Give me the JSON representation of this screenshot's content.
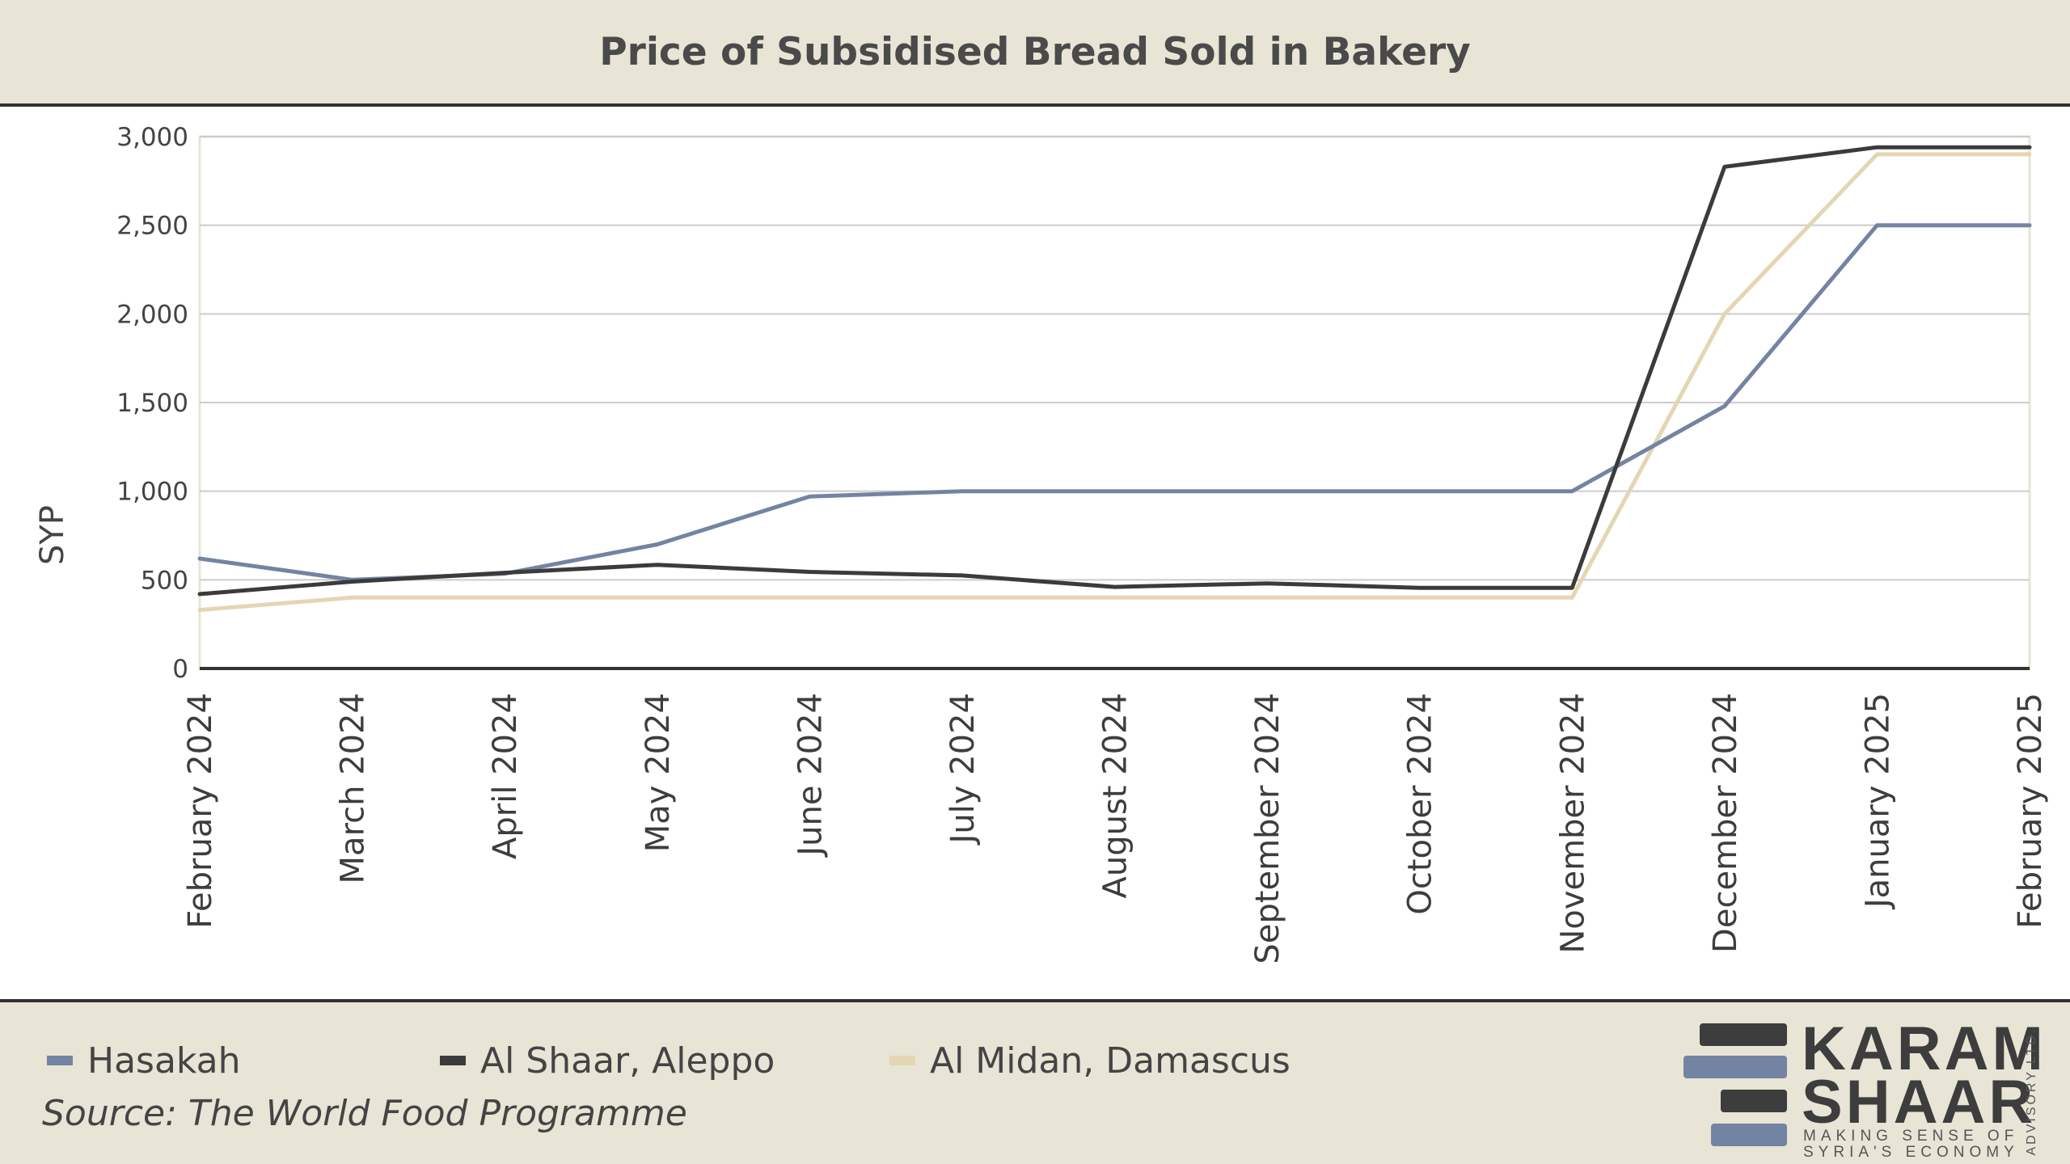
{
  "colors": {
    "hasakah": "#7384a3",
    "aleppo": "#3b3b3b",
    "damascus": "#e3d6b2",
    "band": "#e8e4d6",
    "grid": "#cccccc"
  },
  "chart_data": {
    "type": "line",
    "title": "Price of Subsidised Bread Sold in Bakery",
    "ylabel": "SYP",
    "xlabel": "",
    "ylim": [
      0,
      3000
    ],
    "yticks": [
      "0",
      "500",
      "1,000",
      "1,500",
      "2,000",
      "2,500",
      "3,000"
    ],
    "ytick_values": [
      0,
      500,
      1000,
      1500,
      2000,
      2500,
      3000
    ],
    "grid": true,
    "legend_position": "bottom",
    "categories": [
      "February 2024",
      "March 2024",
      "April 2024",
      "May 2024",
      "June 2024",
      "July 2024",
      "August 2024",
      "September 2024",
      "October 2024",
      "November 2024",
      "December 2024",
      "January 2025",
      "February 2025"
    ],
    "series": [
      {
        "name": "Hasakah",
        "color": "#7384a3",
        "values": [
          620,
          500,
          535,
          700,
          970,
          1000,
          1000,
          1000,
          1000,
          1000,
          1480,
          2500,
          2500
        ]
      },
      {
        "name": "Al Shaar, Aleppo",
        "color": "#3b3b3b",
        "values": [
          420,
          490,
          540,
          585,
          545,
          525,
          460,
          480,
          455,
          455,
          2830,
          2940,
          2940
        ]
      },
      {
        "name": "Al Midan, Damascus",
        "color": "#e3d6b2",
        "values": [
          330,
          400,
          400,
          400,
          400,
          400,
          400,
          400,
          400,
          400,
          2000,
          2900,
          2900
        ]
      }
    ]
  },
  "footer": {
    "source": "Source: The World Food Programme"
  },
  "logo": {
    "line1": "KARAM",
    "line2": "SHAAR",
    "tagline1": "MAKING SENSE OF",
    "tagline2": "SYRIA'S ECONOMY",
    "side": "ADVISORY LTD."
  }
}
